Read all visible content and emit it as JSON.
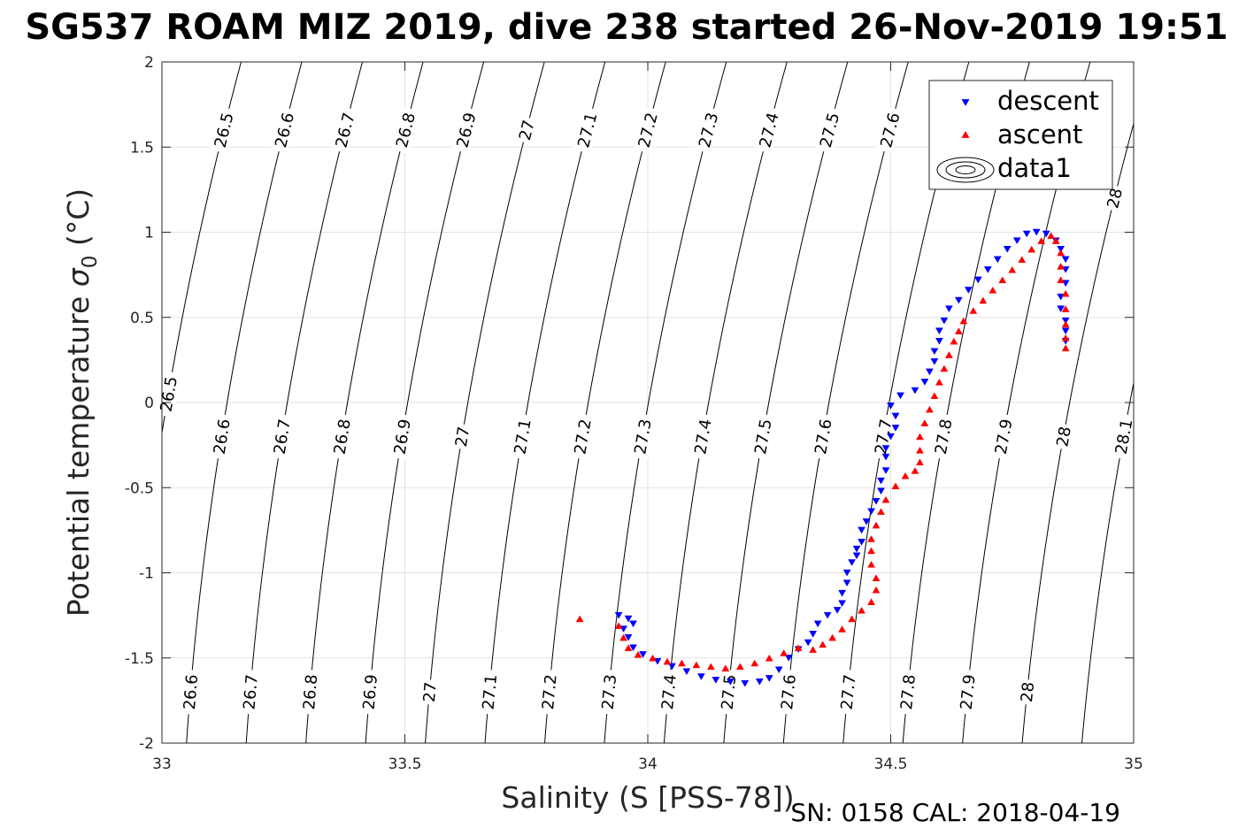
{
  "chart_data": {
    "type": "scatter",
    "title": "SG537 ROAM MIZ 2019, dive 238 started 26-Nov-2019 19:51",
    "xlabel": "Salinity (S [PSS-78])",
    "ylabel_main": "Potential temperature ",
    "ylabel_sigma": "σ",
    "ylabel_sub": "0",
    "ylabel_unit": " (°C)",
    "xlim": [
      33,
      35
    ],
    "ylim": [
      -2,
      2
    ],
    "xticks": [
      33,
      33.5,
      34,
      34.5,
      35
    ],
    "xtick_labels": [
      "33",
      "33.5",
      "34",
      "34.5",
      "35"
    ],
    "yticks": [
      -2,
      -1.5,
      -1,
      -0.5,
      0,
      0.5,
      1,
      1.5,
      2
    ],
    "ytick_labels": [
      "-2",
      "-1.5",
      "-1",
      "-0.5",
      "0",
      "0.5",
      "1",
      "1.5",
      "2"
    ],
    "grid": true,
    "footer": "SN: 0158  CAL: 2018-04-19",
    "legend": {
      "placement": "top-right",
      "entries": [
        {
          "label": "descent",
          "marker": "triangle-down",
          "color": "#0000ff"
        },
        {
          "label": "ascent",
          "marker": "triangle-up",
          "color": "#ff0000"
        },
        {
          "label": "data1",
          "marker": "contour",
          "color": "#000000"
        }
      ]
    },
    "isopycnals": {
      "levels": [
        26.5,
        26.6,
        26.7,
        26.8,
        26.9,
        27,
        27.1,
        27.2,
        27.3,
        27.4,
        27.5,
        27.6,
        27.7,
        27.8,
        27.9,
        28,
        28.1
      ],
      "labels": [
        "26.5",
        "26.6",
        "26.7",
        "26.8",
        "26.9",
        "27",
        "27.1",
        "27.2",
        "27.3",
        "27.4",
        "27.5",
        "27.6",
        "27.7",
        "27.8",
        "27.9",
        "28",
        "28.1"
      ],
      "label_rows": [
        {
          "theta": 1.6,
          "levels": [
            26.5,
            26.6,
            26.7,
            26.8,
            26.9,
            27,
            27.1,
            27.2,
            27.3,
            27.4,
            27.5,
            27.6
          ]
        },
        {
          "theta": 1.2,
          "levels": [
            28
          ]
        },
        {
          "theta": 0.05,
          "levels": [
            26.5
          ]
        },
        {
          "theta": -0.2,
          "levels": [
            26.6,
            26.7,
            26.8,
            26.9,
            27,
            27.1,
            27.2,
            27.3,
            27.4,
            27.5,
            27.6,
            27.7,
            27.8,
            27.9,
            28,
            28.1
          ]
        },
        {
          "theta": -1.7,
          "levels": [
            26.6,
            26.7,
            26.8,
            26.9,
            27,
            27.1,
            27.2,
            27.3,
            27.4,
            27.5,
            27.6,
            27.7,
            27.8,
            27.9,
            28
          ]
        }
      ]
    },
    "series": [
      {
        "name": "descent",
        "marker": "triangle-down",
        "color": "#0000ff",
        "points": [
          [
            33.94,
            -1.25
          ],
          [
            33.96,
            -1.27
          ],
          [
            33.97,
            -1.3
          ],
          [
            33.95,
            -1.33
          ],
          [
            33.96,
            -1.38
          ],
          [
            33.97,
            -1.44
          ],
          [
            33.99,
            -1.48
          ],
          [
            34.02,
            -1.52
          ],
          [
            34.05,
            -1.55
          ],
          [
            34.08,
            -1.58
          ],
          [
            34.11,
            -1.61
          ],
          [
            34.14,
            -1.63
          ],
          [
            34.17,
            -1.64
          ],
          [
            34.2,
            -1.65
          ],
          [
            34.23,
            -1.64
          ],
          [
            34.25,
            -1.62
          ],
          [
            34.27,
            -1.57
          ],
          [
            34.29,
            -1.5
          ],
          [
            34.31,
            -1.45
          ],
          [
            34.33,
            -1.41
          ],
          [
            34.34,
            -1.36
          ],
          [
            34.35,
            -1.3
          ],
          [
            34.37,
            -1.25
          ],
          [
            34.39,
            -1.22
          ],
          [
            34.4,
            -1.18
          ],
          [
            34.4,
            -1.12
          ],
          [
            34.41,
            -1.06
          ],
          [
            34.41,
            -1.0
          ],
          [
            34.42,
            -0.94
          ],
          [
            34.43,
            -0.9
          ],
          [
            34.43,
            -0.86
          ],
          [
            34.44,
            -0.82
          ],
          [
            34.44,
            -0.75
          ],
          [
            34.45,
            -0.7
          ],
          [
            34.46,
            -0.64
          ],
          [
            34.47,
            -0.58
          ],
          [
            34.48,
            -0.52
          ],
          [
            34.48,
            -0.46
          ],
          [
            34.49,
            -0.4
          ],
          [
            34.49,
            -0.32
          ],
          [
            34.49,
            -0.27
          ],
          [
            34.5,
            -0.2
          ],
          [
            34.51,
            -0.15
          ],
          [
            34.51,
            -0.08
          ],
          [
            34.5,
            -0.02
          ],
          [
            34.52,
            0.04
          ],
          [
            34.55,
            0.07
          ],
          [
            34.57,
            0.12
          ],
          [
            34.58,
            0.18
          ],
          [
            34.59,
            0.24
          ],
          [
            34.59,
            0.3
          ],
          [
            34.6,
            0.36
          ],
          [
            34.6,
            0.42
          ],
          [
            34.61,
            0.48
          ],
          [
            34.62,
            0.55
          ],
          [
            34.64,
            0.6
          ],
          [
            34.66,
            0.66
          ],
          [
            34.68,
            0.72
          ],
          [
            34.7,
            0.78
          ],
          [
            34.72,
            0.84
          ],
          [
            34.74,
            0.9
          ],
          [
            34.76,
            0.95
          ],
          [
            34.78,
            0.99
          ],
          [
            34.8,
            1.0
          ],
          [
            34.82,
            0.99
          ],
          [
            34.84,
            0.95
          ],
          [
            34.85,
            0.9
          ],
          [
            34.86,
            0.84
          ],
          [
            34.86,
            0.78
          ],
          [
            34.86,
            0.7
          ],
          [
            34.85,
            0.62
          ],
          [
            34.85,
            0.55
          ],
          [
            34.86,
            0.48
          ],
          [
            34.86,
            0.42
          ],
          [
            34.86,
            0.36
          ]
        ]
      },
      {
        "name": "ascent",
        "marker": "triangle-up",
        "color": "#ff0000",
        "points": [
          [
            33.86,
            -1.27
          ],
          [
            33.94,
            -1.31
          ],
          [
            33.95,
            -1.38
          ],
          [
            33.96,
            -1.44
          ],
          [
            33.98,
            -1.48
          ],
          [
            34.01,
            -1.5
          ],
          [
            34.04,
            -1.52
          ],
          [
            34.07,
            -1.53
          ],
          [
            34.1,
            -1.54
          ],
          [
            34.13,
            -1.55
          ],
          [
            34.16,
            -1.56
          ],
          [
            34.19,
            -1.55
          ],
          [
            34.22,
            -1.53
          ],
          [
            34.25,
            -1.5
          ],
          [
            34.28,
            -1.47
          ],
          [
            34.31,
            -1.44
          ],
          [
            34.34,
            -1.45
          ],
          [
            34.36,
            -1.42
          ],
          [
            34.38,
            -1.38
          ],
          [
            34.4,
            -1.33
          ],
          [
            34.42,
            -1.27
          ],
          [
            34.44,
            -1.22
          ],
          [
            34.46,
            -1.17
          ],
          [
            34.47,
            -1.1
          ],
          [
            34.47,
            -1.03
          ],
          [
            34.46,
            -0.95
          ],
          [
            34.46,
            -0.87
          ],
          [
            34.46,
            -0.8
          ],
          [
            34.47,
            -0.72
          ],
          [
            34.48,
            -0.64
          ],
          [
            34.49,
            -0.57
          ],
          [
            34.51,
            -0.49
          ],
          [
            34.53,
            -0.43
          ],
          [
            34.55,
            -0.4
          ],
          [
            34.56,
            -0.35
          ],
          [
            34.56,
            -0.28
          ],
          [
            34.56,
            -0.2
          ],
          [
            34.57,
            -0.12
          ],
          [
            34.58,
            -0.04
          ],
          [
            34.59,
            0.04
          ],
          [
            34.6,
            0.12
          ],
          [
            34.61,
            0.2
          ],
          [
            34.62,
            0.28
          ],
          [
            34.63,
            0.36
          ],
          [
            34.64,
            0.42
          ],
          [
            34.65,
            0.48
          ],
          [
            34.67,
            0.54
          ],
          [
            34.69,
            0.6
          ],
          [
            34.71,
            0.66
          ],
          [
            34.73,
            0.72
          ],
          [
            34.75,
            0.78
          ],
          [
            34.77,
            0.84
          ],
          [
            34.79,
            0.9
          ],
          [
            34.81,
            0.95
          ],
          [
            34.83,
            0.98
          ],
          [
            34.84,
            0.95
          ],
          [
            34.85,
            0.88
          ],
          [
            34.85,
            0.8
          ],
          [
            34.85,
            0.72
          ],
          [
            34.86,
            0.64
          ],
          [
            34.86,
            0.55
          ],
          [
            34.86,
            0.46
          ],
          [
            34.86,
            0.38
          ],
          [
            34.86,
            0.32
          ]
        ]
      }
    ]
  }
}
